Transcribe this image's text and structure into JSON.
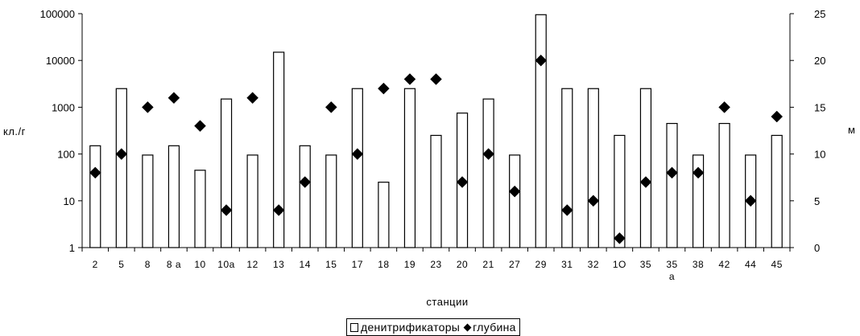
{
  "chart_data": {
    "type": "bar",
    "title": "",
    "xlabel": "станции",
    "ylabel_left": "кл./г",
    "ylabel_right": "м",
    "y_left_scale": "log",
    "y_left_ticks": [
      "1",
      "10",
      "100",
      "1000",
      "10000",
      "100000"
    ],
    "y_left_lim": [
      1,
      100000
    ],
    "y_right_ticks": [
      "0",
      "5",
      "10",
      "15",
      "20",
      "25"
    ],
    "y_right_lim": [
      0,
      25
    ],
    "grid": false,
    "legend_position": "bottom",
    "categories": [
      "2",
      "5",
      "8",
      "8 a",
      "10",
      "10a",
      "12",
      "13",
      "14",
      "15",
      "17",
      "18",
      "19",
      "23",
      "20",
      "21",
      "27",
      "29",
      "31",
      "32",
      "1O",
      "35",
      "35\nа",
      "38",
      "42",
      "44",
      "45"
    ],
    "series": [
      {
        "name": "денитрификаторы",
        "type": "bar",
        "axis": "left",
        "values": [
          150,
          2500,
          95,
          150,
          45,
          1500,
          95,
          15000,
          150,
          95,
          2500,
          25,
          2500,
          250,
          750,
          1500,
          95,
          95000,
          2500,
          2500,
          250,
          2500,
          450,
          95,
          450,
          95,
          250
        ]
      },
      {
        "name": "глубина",
        "type": "scatter",
        "axis": "right",
        "marker": "diamond",
        "values": [
          8,
          10,
          15,
          16,
          13,
          4,
          16,
          4,
          7,
          15,
          10,
          17,
          18,
          18,
          7,
          10,
          6,
          20,
          4,
          5,
          1,
          7,
          8,
          8,
          15,
          5,
          14
        ]
      }
    ]
  },
  "legend": {
    "bars_label": "денитрификаторы",
    "markers_label": "глубина"
  }
}
